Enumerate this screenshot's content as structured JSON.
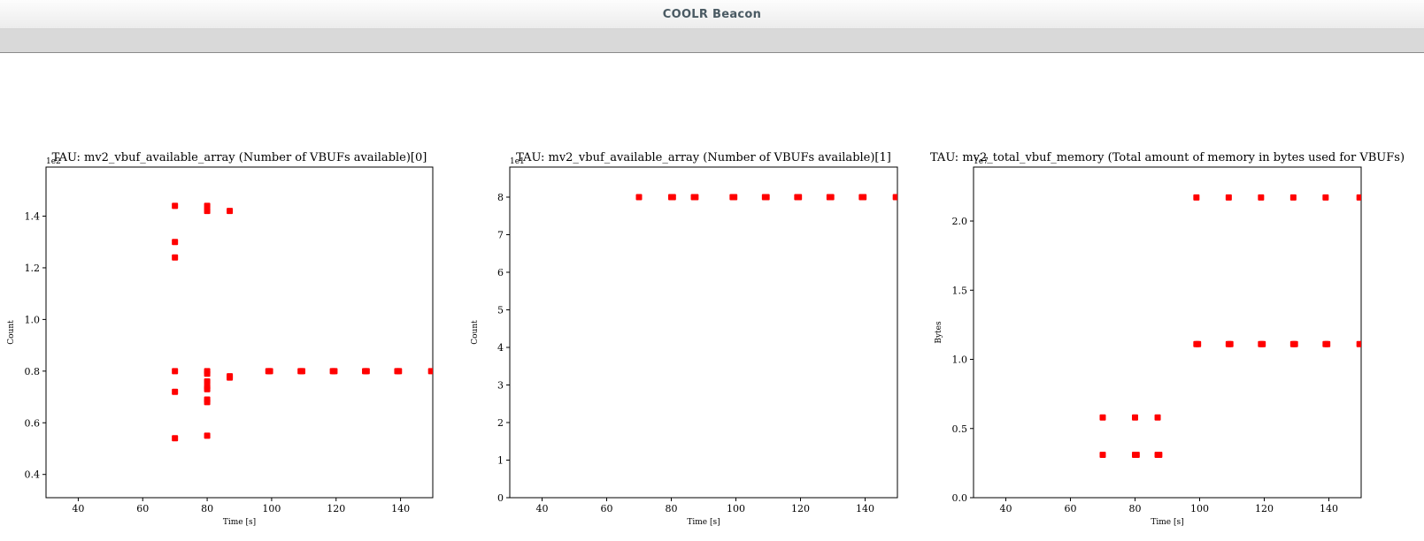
{
  "window": {
    "title": "COOLR Beacon"
  },
  "chart_data": [
    {
      "type": "scatter",
      "title": "TAU: mv2_vbuf_available_array (Number of VBUFs available)[0]",
      "xlabel": "Time [s]",
      "ylabel": "Count",
      "offset_label": "1e2",
      "xlim": [
        30,
        150
      ],
      "ylim": [
        0.31,
        1.59
      ],
      "xticks": [
        40,
        60,
        80,
        100,
        120,
        140
      ],
      "yticks": [
        0.4,
        0.6,
        0.8,
        1.0,
        1.2,
        1.4
      ],
      "ytick_decimals": 1,
      "marker_color": "#ff0000",
      "grid": false,
      "points": [
        [
          70,
          1.44
        ],
        [
          70,
          1.3
        ],
        [
          70,
          1.24
        ],
        [
          70,
          0.8
        ],
        [
          70,
          0.72
        ],
        [
          70,
          0.54
        ],
        [
          80,
          1.44
        ],
        [
          80,
          1.42
        ],
        [
          80,
          0.8
        ],
        [
          80,
          0.79
        ],
        [
          80,
          0.76
        ],
        [
          80,
          0.74
        ],
        [
          80,
          0.73
        ],
        [
          80,
          0.69
        ],
        [
          80,
          0.68
        ],
        [
          80,
          0.55
        ],
        [
          87,
          1.42
        ],
        [
          87,
          0.78
        ],
        [
          87,
          0.775
        ],
        [
          99,
          0.8
        ],
        [
          99.5,
          0.8
        ],
        [
          109,
          0.8
        ],
        [
          109.5,
          0.8
        ],
        [
          119,
          0.8
        ],
        [
          119.5,
          0.8
        ],
        [
          129,
          0.8
        ],
        [
          129.5,
          0.8
        ],
        [
          139,
          0.8
        ],
        [
          139.5,
          0.8
        ],
        [
          149.5,
          0.8
        ]
      ]
    },
    {
      "type": "scatter",
      "title": "TAU: mv2_vbuf_available_array (Number of VBUFs available)[1]",
      "xlabel": "Time [s]",
      "ylabel": "Count",
      "offset_label": "1e1",
      "xlim": [
        30,
        150
      ],
      "ylim": [
        0,
        8.8
      ],
      "xticks": [
        40,
        60,
        80,
        100,
        120,
        140
      ],
      "yticks": [
        0,
        1,
        2,
        3,
        4,
        5,
        6,
        7,
        8
      ],
      "ytick_decimals": 0,
      "marker_color": "#ff0000",
      "grid": false,
      "points": [
        [
          70,
          8
        ],
        [
          80,
          8
        ],
        [
          80.5,
          8
        ],
        [
          87,
          8
        ],
        [
          87.5,
          8
        ],
        [
          99,
          8
        ],
        [
          99.5,
          8
        ],
        [
          109,
          8
        ],
        [
          109.5,
          8
        ],
        [
          119,
          8
        ],
        [
          119.5,
          8
        ],
        [
          129,
          8
        ],
        [
          129.5,
          8
        ],
        [
          139,
          8
        ],
        [
          139.5,
          8
        ],
        [
          149.5,
          8
        ]
      ]
    },
    {
      "type": "scatter",
      "title": "TAU: mv2_total_vbuf_memory (Total amount of memory in bytes used for VBUFs)",
      "xlabel": "Time [s]",
      "ylabel": "Bytes",
      "offset_label": "1e7",
      "xlim": [
        30,
        150
      ],
      "ylim": [
        0,
        2.39
      ],
      "xticks": [
        40,
        60,
        80,
        100,
        120,
        140
      ],
      "yticks": [
        0.0,
        0.5,
        1.0,
        1.5,
        2.0
      ],
      "ytick_decimals": 1,
      "marker_color": "#ff0000",
      "grid": false,
      "points": [
        [
          70,
          0.58
        ],
        [
          70,
          0.31
        ],
        [
          80,
          0.58
        ],
        [
          80,
          0.31
        ],
        [
          80.5,
          0.31
        ],
        [
          87,
          0.58
        ],
        [
          87,
          0.31
        ],
        [
          87.5,
          0.31
        ],
        [
          99,
          2.17
        ],
        [
          99,
          1.11
        ],
        [
          99.5,
          1.11
        ],
        [
          109,
          2.17
        ],
        [
          109,
          1.11
        ],
        [
          109.5,
          1.11
        ],
        [
          119,
          2.17
        ],
        [
          119,
          1.11
        ],
        [
          119.5,
          1.11
        ],
        [
          129,
          2.17
        ],
        [
          129,
          1.11
        ],
        [
          129.5,
          1.11
        ],
        [
          139,
          2.17
        ],
        [
          139,
          1.11
        ],
        [
          139.5,
          1.11
        ],
        [
          149.5,
          2.17
        ],
        [
          149.5,
          1.11
        ]
      ]
    }
  ]
}
